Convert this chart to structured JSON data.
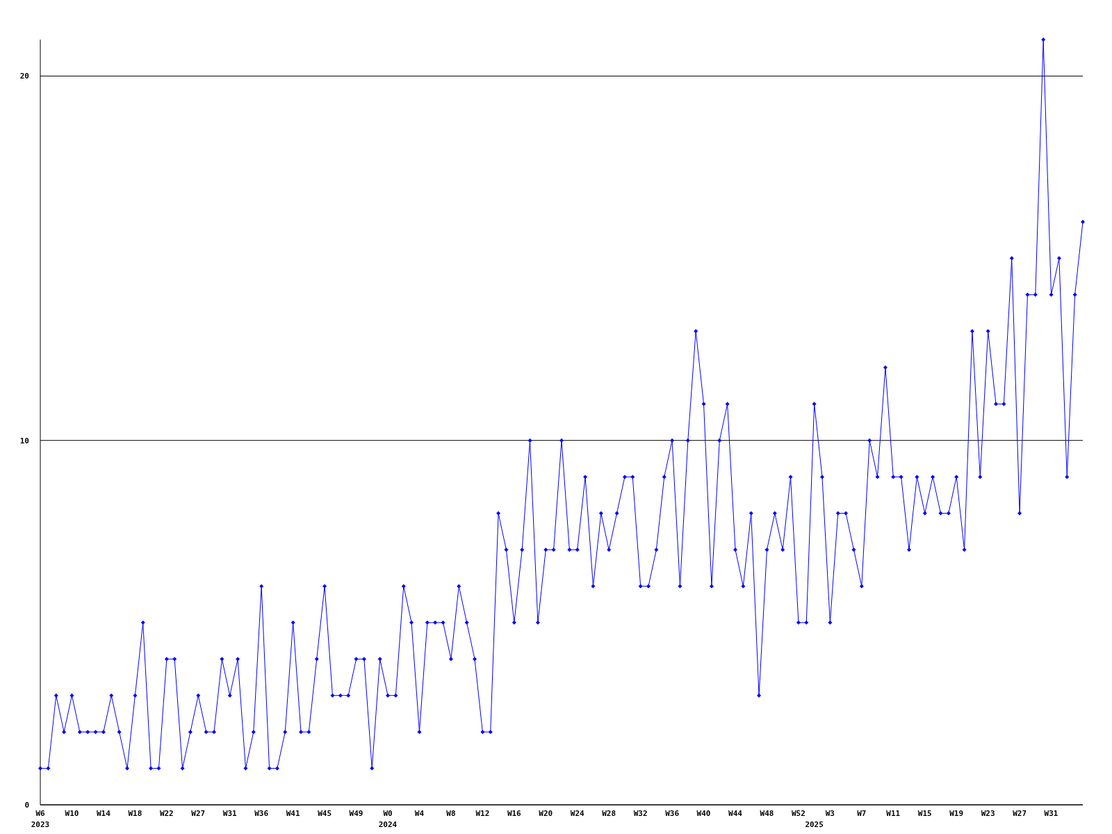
{
  "chart_data": {
    "type": "line",
    "categories": [
      "W6\n2023",
      null,
      null,
      null,
      "W10",
      null,
      null,
      null,
      "W14",
      null,
      null,
      null,
      "W18",
      null,
      null,
      null,
      "W22",
      null,
      null,
      null,
      "W27",
      null,
      null,
      null,
      "W31",
      null,
      null,
      null,
      "W36",
      null,
      null,
      null,
      "W41",
      null,
      null,
      null,
      "W45",
      null,
      null,
      null,
      "W49",
      null,
      null,
      null,
      "W0\n2024",
      null,
      null,
      null,
      "W4",
      null,
      null,
      null,
      "W8",
      null,
      null,
      null,
      "W12",
      null,
      null,
      null,
      "W16",
      null,
      null,
      null,
      "W20",
      null,
      null,
      null,
      "W24",
      null,
      null,
      null,
      "W28",
      null,
      null,
      null,
      "W32",
      null,
      null,
      null,
      "W36",
      null,
      null,
      null,
      "W40",
      null,
      null,
      null,
      "W44",
      null,
      null,
      null,
      "W48",
      null,
      null,
      null,
      "W52",
      null,
      "\n2025",
      null,
      "W3",
      null,
      null,
      null,
      "W7",
      null,
      null,
      null,
      "W11",
      null,
      null,
      null,
      "W15",
      null,
      null,
      null,
      "W19",
      null,
      null,
      null,
      "W23",
      null,
      null,
      null,
      "W27",
      null,
      null,
      null,
      "W31",
      null,
      null,
      null,
      null
    ],
    "series": [
      {
        "color": "#0000ff",
        "values": [
          1,
          1,
          3,
          2,
          3,
          2,
          2,
          2,
          2,
          3,
          2,
          1,
          3,
          5,
          1,
          1,
          4,
          4,
          1,
          2,
          3,
          2,
          2,
          4,
          3,
          4,
          1,
          2,
          6,
          1,
          1,
          2,
          5,
          2,
          2,
          4,
          6,
          3,
          3,
          3,
          4,
          4,
          1,
          4,
          3,
          3,
          6,
          5,
          2,
          5,
          5,
          5,
          4,
          6,
          5,
          4,
          2,
          2,
          8,
          7,
          5,
          7,
          10,
          5,
          7,
          7,
          10,
          7,
          7,
          9,
          6,
          8,
          7,
          8,
          9,
          9,
          6,
          6,
          7,
          9,
          10,
          6,
          10,
          13,
          11,
          6,
          10,
          11,
          7,
          6,
          8,
          3,
          7,
          8,
          7,
          9,
          5,
          5,
          11,
          9,
          5,
          8,
          8,
          7,
          6,
          10,
          9,
          12,
          9,
          9,
          7,
          9,
          8,
          9,
          8,
          8,
          9,
          7,
          13,
          9,
          13,
          11,
          11,
          15,
          8,
          14,
          14,
          21,
          14,
          15,
          9,
          14,
          16
        ]
      }
    ],
    "ylim": [
      0,
      21
    ],
    "yticks": [
      0,
      10,
      20
    ],
    "grid": "y",
    "marker": "diamond",
    "line_style": "solid"
  }
}
